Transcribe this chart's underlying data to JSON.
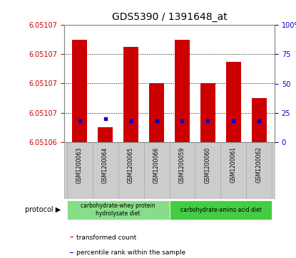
{
  "title": "GDS5390 / 1391648_at",
  "samples": [
    "GSM1200063",
    "GSM1200064",
    "GSM1200065",
    "GSM1200066",
    "GSM1200059",
    "GSM1200060",
    "GSM1200061",
    "GSM1200062"
  ],
  "transformed_count": [
    6.051074,
    6.051062,
    6.051073,
    6.051068,
    6.051074,
    6.051068,
    6.051071,
    6.051066
  ],
  "percentile_rank": [
    18,
    20,
    18,
    18,
    18,
    18,
    18,
    18
  ],
  "ymin": 6.05106,
  "ymax": 6.051076,
  "y_left_ticks": [
    6.05106,
    6.051064,
    6.051068,
    6.051072,
    6.051076
  ],
  "y_left_labels": [
    "6.05106",
    "6.05107",
    "6.05107",
    "6.05107",
    "6.05107"
  ],
  "y2ticks": [
    0,
    25,
    50,
    75,
    100
  ],
  "y2tick_labels": [
    "0",
    "25",
    "50",
    "75",
    "100%"
  ],
  "bar_color": "#cc0000",
  "percentile_color": "#0000cc",
  "protocol_groups": [
    {
      "label": "carbohydrate-whey protein\nhydrolysate diet",
      "indices": [
        0,
        1,
        2,
        3
      ],
      "color": "#88dd88"
    },
    {
      "label": "carbohydrate-amino acid diet",
      "indices": [
        4,
        5,
        6,
        7
      ],
      "color": "#44cc44"
    }
  ],
  "legend_items": [
    {
      "color": "#cc0000",
      "label": "transformed count"
    },
    {
      "color": "#0000cc",
      "label": "percentile rank within the sample"
    }
  ],
  "title_fontsize": 10,
  "left_tick_color": "#cc0000",
  "right_tick_color": "#0000cc",
  "bar_width": 0.6,
  "sample_box_color": "#cccccc",
  "sample_box_edge": "#aaaaaa"
}
